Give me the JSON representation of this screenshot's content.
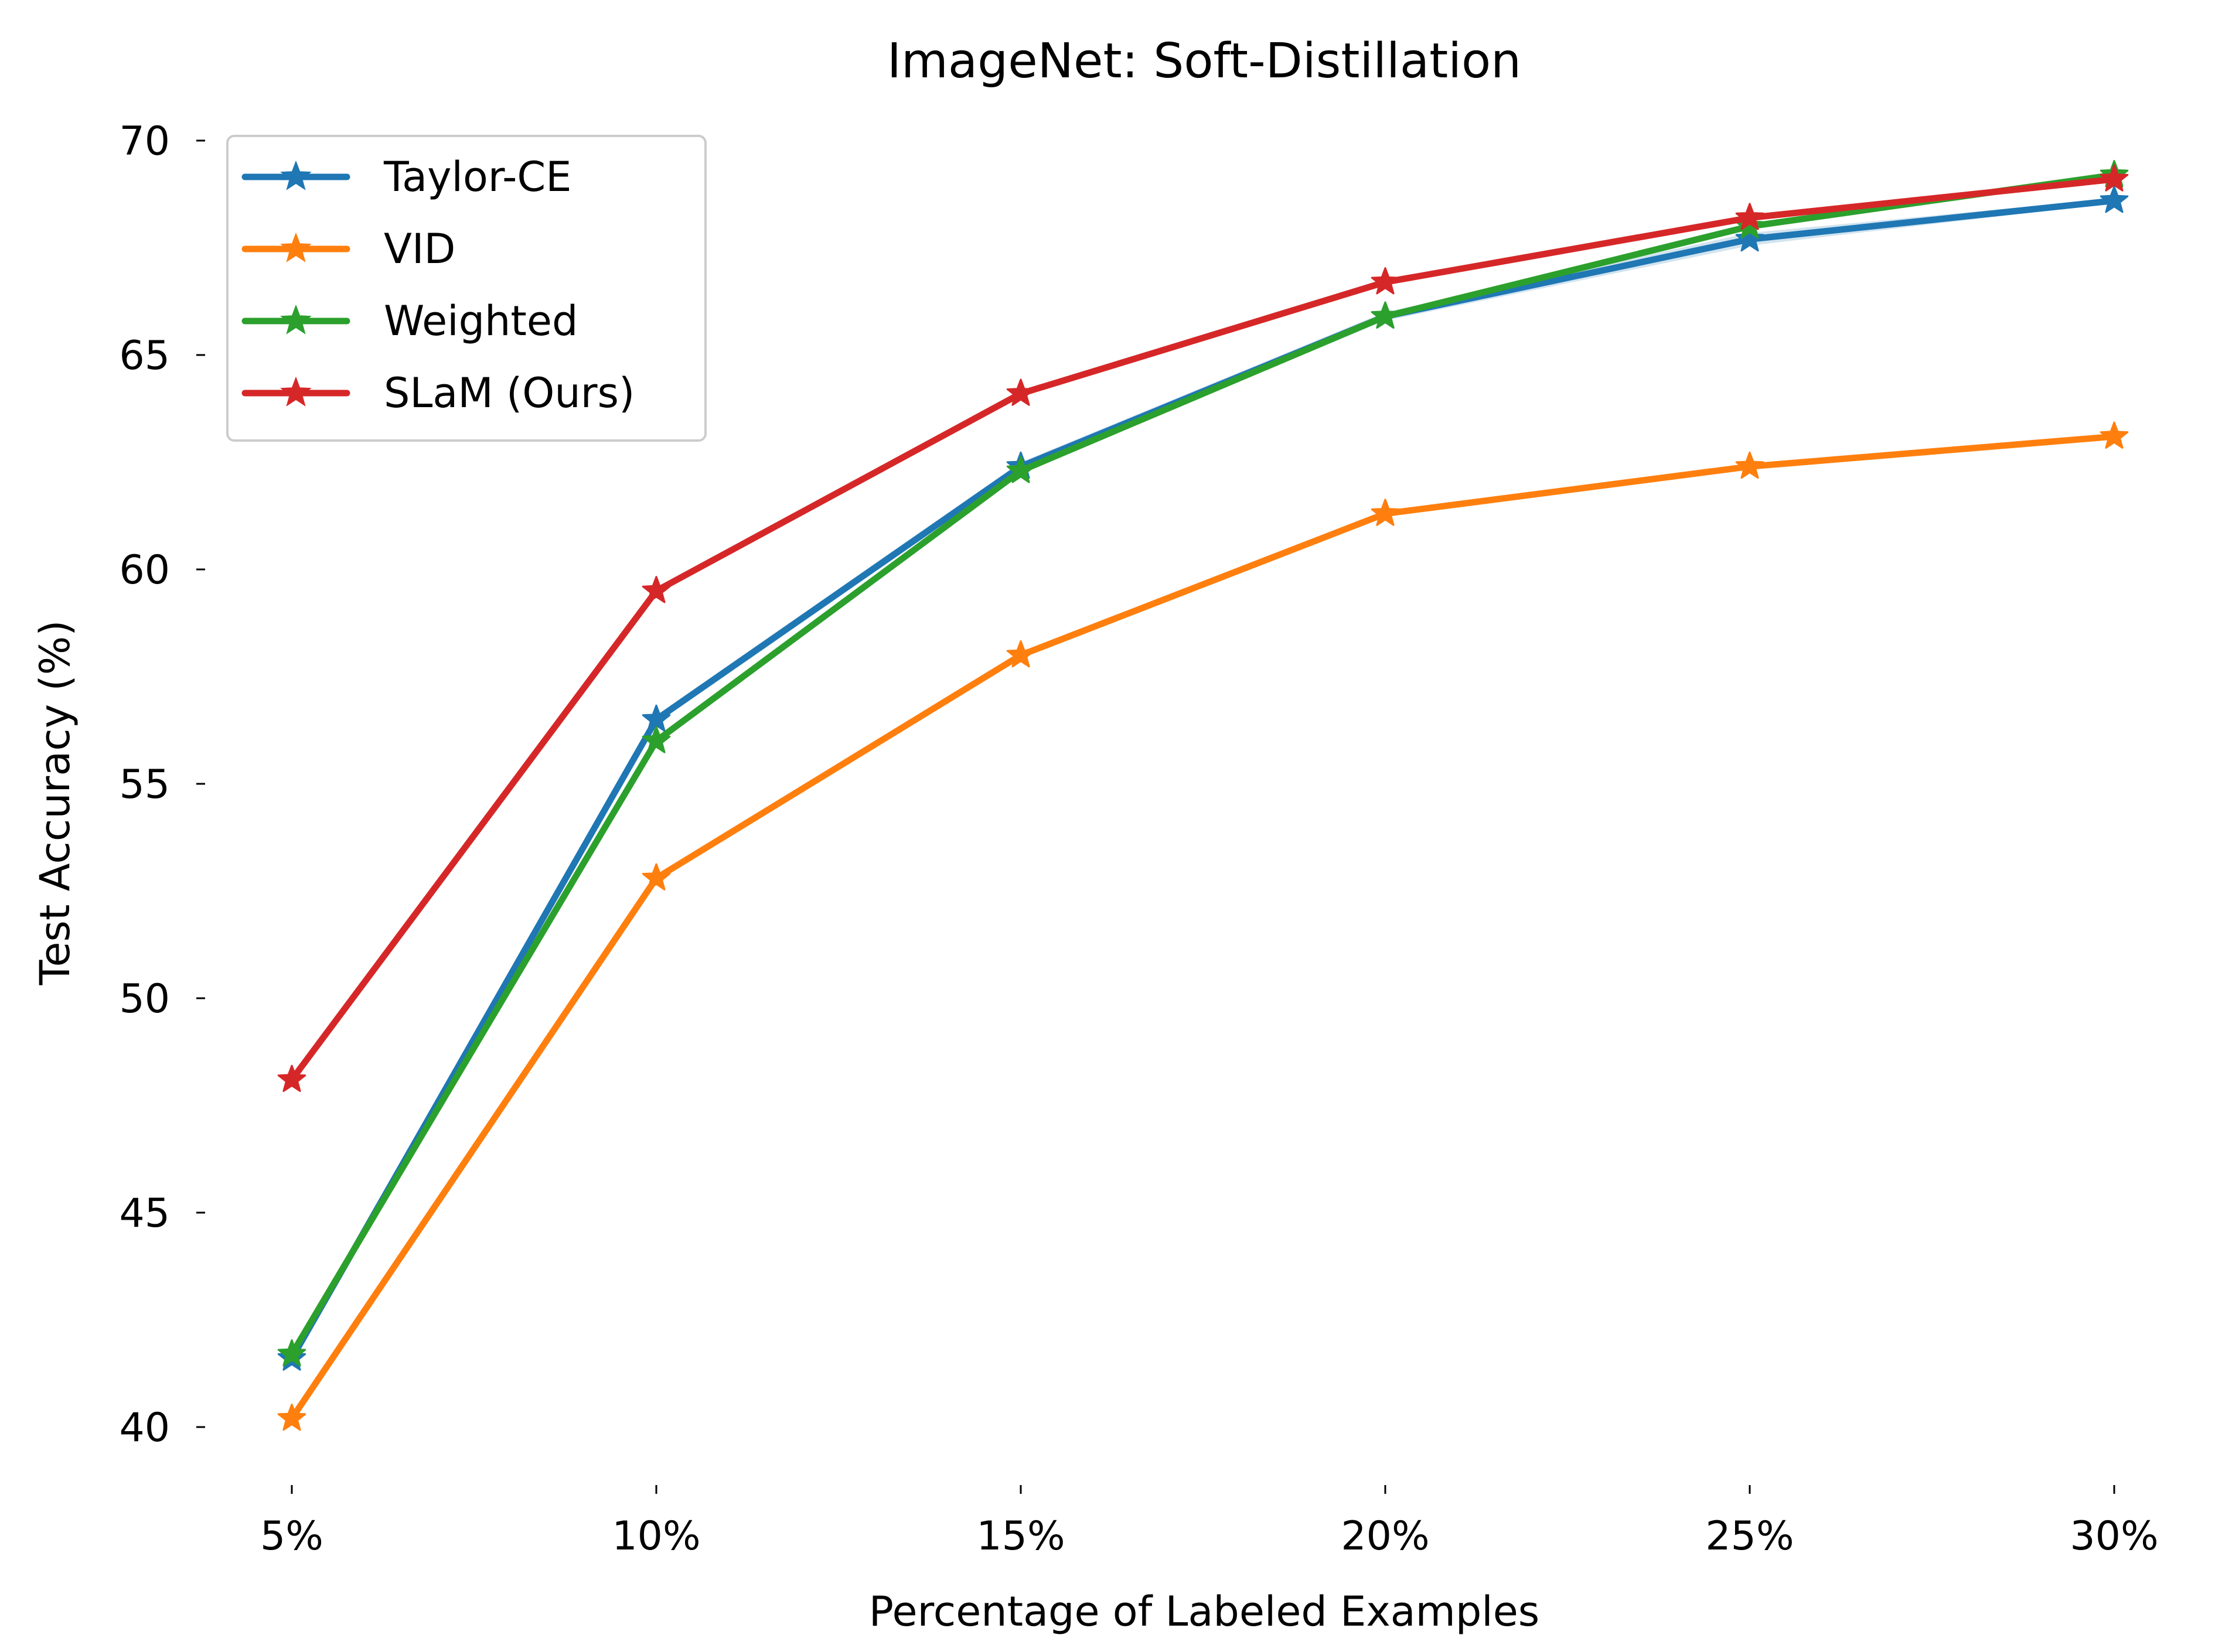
{
  "chart_data": {
    "type": "line",
    "title": "ImageNet: Soft-Distillation",
    "xlabel": "Percentage of Labeled Examples",
    "ylabel": "Test Accuracy (%)",
    "categories": [
      "5%",
      "10%",
      "15%",
      "20%",
      "25%",
      "30%"
    ],
    "ylim": [
      39,
      70.5
    ],
    "yticks": [
      40,
      45,
      50,
      55,
      60,
      65,
      70
    ],
    "ytick_labels": [
      "40",
      "45",
      "50",
      "55",
      "60",
      "65",
      "70"
    ],
    "grid": false,
    "legend_position": "top-left",
    "marker": "star",
    "series": [
      {
        "name": "Taylor-CE",
        "color": "#1f77b4",
        "values": [
          41.6,
          56.5,
          62.4,
          65.9,
          67.7,
          68.6
        ],
        "band": [
          0.0,
          0.1,
          0.1,
          0.1,
          0.15,
          0.05
        ]
      },
      {
        "name": "VID",
        "color": "#ff7f0e",
        "values": [
          40.2,
          52.8,
          58.0,
          61.3,
          62.4,
          63.1
        ]
      },
      {
        "name": "Weighted",
        "color": "#2ca02c",
        "values": [
          41.7,
          56.0,
          62.3,
          65.9,
          68.0,
          69.2
        ]
      },
      {
        "name": "SLaM (Ours)",
        "color": "#d62728",
        "values": [
          48.1,
          59.5,
          64.1,
          66.7,
          68.2,
          69.1
        ]
      }
    ]
  }
}
